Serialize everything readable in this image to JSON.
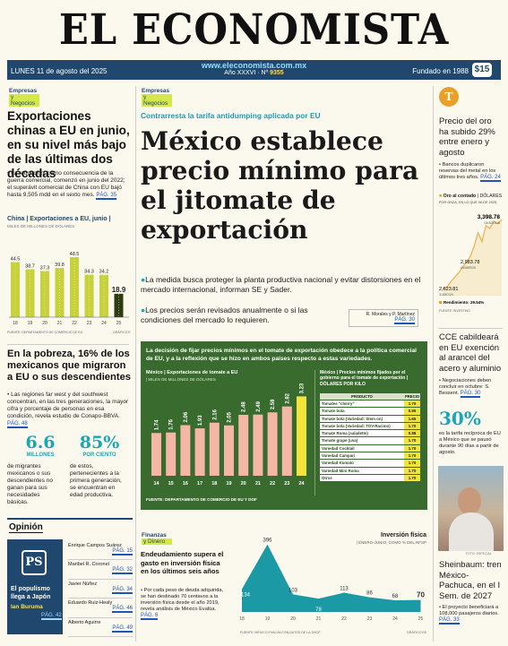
{
  "masthead": {
    "title": "EL ECONOMISTA"
  },
  "dateline": {
    "date": "LUNES 11 de agosto del 2025",
    "site": "www.eleconomista.com.mx",
    "year": "Año XXXVI · Nº",
    "issue": "9355",
    "founded": "Fundado en 1988",
    "price": "$15"
  },
  "tags": {
    "empresas": "Empresas",
    "negocios": "y Negocios",
    "finanzas": "Finanzas",
    "dinero": "y Dinero"
  },
  "left": {
    "headline": "Exportaciones chinas a EU en junio, en su nivel más bajo de las últimas dos décadas",
    "body": "• La reducción, como consecuencia de la guerra comercial, comenzó en junio del 2022; el superávit comercial de China con EU bajó hasta 9,505 mdd en el sexto mes.",
    "page": "PÁG. 35",
    "chart_data": {
      "type": "bar",
      "title": "China | Exportaciones a EU, junio |",
      "subtitle": "MILES DE MILLONES DE DÓLARES",
      "categories": [
        "18",
        "19",
        "20",
        "21",
        "22",
        "23",
        "24",
        "25"
      ],
      "values": [
        44.5,
        38.7,
        37.3,
        39.8,
        48.5,
        34.3,
        34.2,
        18.9
      ],
      "source": "FUENTE: DEPARTAMENTO DE COMERCIO DE EU",
      "credit": "GRÁFICO EE",
      "ylim": [
        0,
        55
      ]
    },
    "poverty_headline": "En la pobreza, 16% de los mexicanos que migraron a EU o sus descendientes",
    "poverty_body": "• Las regiones far west y del southwest concentran, en las tres generaciones, la mayor cifra y porcentaje de personas en esa condición, revela estudio de Conapo-BBVA.",
    "poverty_page": "PÁG. 48",
    "stat1_value": "6.6",
    "stat1_unit": "MILLONES",
    "stat1_desc": "de migrantes mexicanos o sus descendientes no ganan para sus necesidades básicas.",
    "stat2_value": "85%",
    "stat2_unit": "POR CIENTO",
    "stat2_desc": "de estos, pertenecientes a la primera generación, se encuentran en edad productiva."
  },
  "opinion": {
    "title": "Opinión",
    "promo1": "El populismo llega a Japón",
    "promo2": "Ian Buruma",
    "promo_page": "PÁG. 42",
    "items": [
      {
        "name": "Enrique Campos Suárez",
        "page": "PÁG. 15"
      },
      {
        "name": "Maribel R. Coronel",
        "page": "PÁG. 32"
      },
      {
        "name": "Javier Núñez",
        "page": "PÁG. 34"
      },
      {
        "name": "Eduardo Ruiz-Healy",
        "page": "PÁG. 46"
      },
      {
        "name": "Alberto Aguirre",
        "page": "PÁG. 49"
      }
    ]
  },
  "center": {
    "kicker": "Contrarresta la tarifa antidumping aplicada por EU",
    "headline": "México establece precio mínimo para el jitomate de exportación",
    "bullet1": "La medida busca proteger la planta productiva nacional y evitar distorsiones en el mercado internacional, informan SE y Sader.",
    "bullet2": "Los precios serán revisados anualmente o si las condiciones del mercado lo requieren.",
    "byline": "R. Morales y P. Martínez",
    "page": "PÁG. 30"
  },
  "infobox": {
    "intro": "La decisión de fijar precios mínimos en el tomate de exportación obedece a la política comercial de EU, y a la reflexión que se hizo en ambos países respecto a estas variedades.",
    "chart_data": {
      "type": "bar",
      "title": "México | Exportaciones de tomate a EU",
      "subtitle": "| MILES DE MILLONES DE DÓLARES",
      "categories": [
        "14",
        "15",
        "16",
        "17",
        "18",
        "19",
        "20",
        "21",
        "22",
        "23",
        "24"
      ],
      "values": [
        1.74,
        1.76,
        2.06,
        1.93,
        2.16,
        2.05,
        2.48,
        2.49,
        2.58,
        2.82,
        3.23
      ],
      "ylim": [
        0,
        3.5
      ]
    },
    "table_title": "México | Precios mínimos fijados por el gobierno para el tomate de exportación | DÓLARES POR KILO",
    "table_headers": [
      "PRODUCTO",
      "PRECIO"
    ],
    "table_rows": [
      [
        "Tomates \"cherry\"",
        "1.70"
      ],
      [
        "Tomate bola",
        "0.95"
      ],
      [
        "Tomate bola (Variedad: Stem on)",
        "1.65"
      ],
      [
        "Tomate bola (Variedad: TOV-Racimo)",
        "1.70"
      ],
      [
        "Tomate Roma (saladette)",
        "0.88"
      ],
      [
        "Tomate grape (uva)",
        "1.70"
      ],
      [
        "Variedad Cocktail",
        "1.70"
      ],
      [
        "Variedad Campari",
        "1.70"
      ],
      [
        "Variedad Kumato",
        "1.70"
      ],
      [
        "Variedad Mini Roma",
        "1.70"
      ],
      [
        "Otros",
        "1.70"
      ]
    ],
    "source": "FUENTE: DEPARTAMENTO DE COMERCIO DE EU Y DOF"
  },
  "finanzas": {
    "headline": "Endeudamiento supera el gasto en inversión física en los últimos seis años",
    "body": "• Por cada peso de deuda adquirida, se han destinado 70 centavos a la inversión física desde el año 2019, revela análisis de México Evalúa.",
    "page": "PÁG. 6",
    "chart_data": {
      "type": "area",
      "title": "Inversión física",
      "subtitle": "| ENERO-JUNIO, COMO % DEL RFSP",
      "x": [
        "18",
        "19",
        "20",
        "21",
        "22",
        "23",
        "24",
        "25"
      ],
      "values": [
        134,
        396,
        103,
        78,
        113,
        86,
        68,
        70
      ],
      "source": "FUENTE: MÉXICO EVALÚA CON DATOS DE LA SHCP",
      "credit": "GRÁFICO EE"
    }
  },
  "right": {
    "gold_headline": "Precio del oro ha subido 29% entre enero y agosto",
    "gold_body": "• Bancos duplicaron reservas del metal en los últimos tres años.",
    "gold_page": "PÁG. 24",
    "gold_chart_title": "Oro al contado",
    "gold_chart_unit": "| DÓLARES",
    "gold_chart_sub": "POR ONZA, EN LO QUE VA DE 2025",
    "gold_chart_data": {
      "type": "line",
      "points": [
        {
          "label": "2,623.81",
          "date": "31/DIC/24",
          "value": 2623.81
        },
        {
          "label": "2,983.78",
          "date": "04/ABR/25",
          "value": 2983.78
        },
        {
          "label": "3,398.78",
          "date": "04/AGO/25",
          "value": 3398.78
        }
      ],
      "return_label": "Rendimiento: 29.54%",
      "source": "FUENTE: INVESTING"
    },
    "cce_headline": "CCE cabildeará en EU exención al arancel del acero y aluminio",
    "cce_body": "• Negociaciones deben concluir en octubre: S. Bessent.",
    "cce_page": "PÁG. 30",
    "stat_value": "30%",
    "stat_desc": "es la tarifa recíproca de EU a México que se pausó durante 90 días a partir de agosto.",
    "photo_credit": "FOTO: ESPECIAL",
    "train_headline": "Sheinbaum: tren México-Pachuca, en el I Sem. de 2027",
    "train_body": "• El proyecto beneficiará a 108,000 pasajeros diarios.",
    "train_page": "PÁG. 33"
  }
}
